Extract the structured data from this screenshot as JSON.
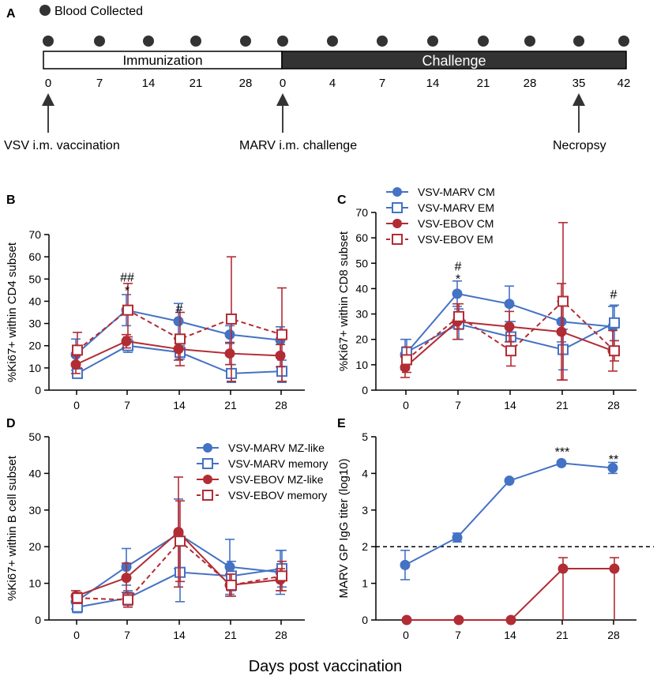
{
  "timeline": {
    "panel_label": "A",
    "legend_label": "Blood Collected",
    "immunization_label": "Immunization",
    "challenge_label": "Challenge",
    "day_labels": [
      "0",
      "7",
      "14",
      "21",
      "28",
      "0",
      "4",
      "7",
      "14",
      "21",
      "28",
      "35",
      "42"
    ],
    "events": [
      "VSV i.m. vaccination",
      "MARV i.m. challenge",
      "Necropsy"
    ]
  },
  "colors": {
    "blue": "#4472c4",
    "red": "#b22c34",
    "challenge_fill": "#333333"
  },
  "x_axis_title": "Days post vaccination",
  "chart_data": [
    {
      "panel": "B",
      "type": "line",
      "ylabel": "%Ki67+ within CD4 subset",
      "x": [
        0,
        7,
        14,
        21,
        28
      ],
      "ylim": [
        0,
        70
      ],
      "yticks": [
        0,
        10,
        20,
        30,
        40,
        50,
        60,
        70
      ],
      "legend": false,
      "annotations": [
        {
          "x": 7,
          "y": 51,
          "text": "##"
        },
        {
          "x": 7,
          "y": 45,
          "text": "*"
        },
        {
          "x": 14,
          "y": 37,
          "text": "#"
        }
      ],
      "series": [
        {
          "name": "VSV-MARV CM",
          "color": "blue",
          "marker": "circle-filled",
          "dash": false,
          "values": [
            16,
            36,
            31,
            25,
            22.5
          ],
          "err": [
            7,
            7,
            8,
            4,
            6
          ]
        },
        {
          "name": "VSV-MARV EM",
          "color": "blue",
          "marker": "square-open",
          "dash": false,
          "values": [
            7.5,
            20,
            17,
            7.5,
            8.5
          ],
          "err": [
            2,
            3,
            3,
            4,
            5
          ]
        },
        {
          "name": "VSV-EBOV CM",
          "color": "red",
          "marker": "circle-filled",
          "dash": false,
          "values": [
            11.5,
            22,
            18.5,
            16.5,
            15.5
          ],
          "err": [
            4,
            3,
            5,
            5,
            5
          ]
        },
        {
          "name": "VSV-EBOV EM",
          "color": "red",
          "marker": "square-open",
          "dash": true,
          "values": [
            18,
            36,
            23,
            32,
            25
          ],
          "err": [
            8,
            12,
            12,
            28,
            21
          ]
        }
      ]
    },
    {
      "panel": "C",
      "type": "line",
      "ylabel": "%Ki67+ within CD8 subset",
      "x": [
        0,
        7,
        14,
        21,
        28
      ],
      "ylim": [
        0,
        70
      ],
      "yticks": [
        0,
        10,
        20,
        30,
        40,
        50,
        60,
        70
      ],
      "legend": true,
      "legend_position": "top-left",
      "annotations": [
        {
          "x": 7,
          "y": 49,
          "text": "#"
        },
        {
          "x": 7,
          "y": 44,
          "text": "*"
        },
        {
          "x": 28,
          "y": 38,
          "text": "#"
        }
      ],
      "series": [
        {
          "name": "VSV-MARV CM",
          "color": "blue",
          "marker": "circle-filled",
          "dash": false,
          "values": [
            14,
            38,
            34,
            27,
            25
          ],
          "err": [
            6,
            5,
            7,
            8,
            8
          ]
        },
        {
          "name": "VSV-MARV EM",
          "color": "blue",
          "marker": "square-open",
          "dash": false,
          "values": [
            15,
            26,
            21,
            16,
            26.5
          ],
          "err": [
            5,
            6,
            6,
            8,
            7
          ]
        },
        {
          "name": "VSV-EBOV CM",
          "color": "red",
          "marker": "circle-filled",
          "dash": false,
          "values": [
            9,
            27,
            25,
            23,
            15.5
          ],
          "err": [
            4,
            7,
            6,
            19,
            8
          ]
        },
        {
          "name": "VSV-EBOV EM",
          "color": "red",
          "marker": "square-open",
          "dash": true,
          "values": [
            12,
            29,
            15.5,
            35,
            15.5
          ],
          "err": [
            5,
            5,
            6,
            31,
            4
          ]
        }
      ]
    },
    {
      "panel": "D",
      "type": "line",
      "ylabel": "%Ki67+ within B cell subset",
      "x": [
        0,
        7,
        14,
        21,
        28
      ],
      "ylim": [
        0,
        50
      ],
      "yticks": [
        0,
        10,
        20,
        30,
        40,
        50
      ],
      "legend": true,
      "legend_position": "top-right",
      "annotations": [],
      "series": [
        {
          "name": "VSV-MARV MZ-like",
          "color": "blue",
          "marker": "circle-filled",
          "dash": false,
          "values": [
            5,
            14.5,
            23.5,
            14.5,
            13
          ],
          "err": [
            2,
            5,
            9.5,
            7.5,
            6
          ]
        },
        {
          "name": "VSV-MARV memory",
          "color": "blue",
          "marker": "square-open",
          "dash": false,
          "values": [
            3.5,
            6,
            13,
            12,
            14
          ],
          "err": [
            1.5,
            2,
            8,
            4,
            5
          ]
        },
        {
          "name": "VSV-EBOV MZ-like",
          "color": "red",
          "marker": "circle-filled",
          "dash": false,
          "values": [
            6.5,
            11.5,
            24,
            9.5,
            11
          ],
          "err": [
            1.5,
            4,
            15,
            3,
            3
          ]
        },
        {
          "name": "VSV-EBOV memory",
          "color": "red",
          "marker": "square-open",
          "dash": true,
          "values": [
            6,
            5.5,
            21.5,
            9.5,
            12
          ],
          "err": [
            1.5,
            2,
            11,
            3,
            4
          ]
        }
      ]
    },
    {
      "panel": "E",
      "type": "line",
      "ylabel": "MARV GP IgG titer (log10)",
      "x": [
        0,
        7,
        14,
        21,
        28
      ],
      "ylim": [
        0,
        5
      ],
      "yticks": [
        0,
        1,
        2,
        3,
        4,
        5
      ],
      "legend": false,
      "reference_line": 2,
      "annotations": [
        {
          "x": 21,
          "y": 4.6,
          "text": "***"
        },
        {
          "x": 28,
          "y": 4.4,
          "text": "**"
        }
      ],
      "series": [
        {
          "name": "VSV-MARV",
          "color": "blue",
          "marker": "circle-filled",
          "dash": false,
          "values": [
            1.5,
            2.25,
            3.8,
            4.28,
            4.15
          ],
          "err": [
            0.4,
            0.12,
            0.03,
            0.03,
            0.15
          ]
        },
        {
          "name": "VSV-EBOV",
          "color": "red",
          "marker": "circle-filled",
          "dash": false,
          "values": [
            0,
            0,
            0,
            1.4,
            1.4
          ],
          "err": [
            0,
            0,
            0,
            0.3,
            0.3
          ],
          "err_down_to_zero": [
            false,
            false,
            false,
            true,
            true
          ]
        }
      ]
    }
  ]
}
